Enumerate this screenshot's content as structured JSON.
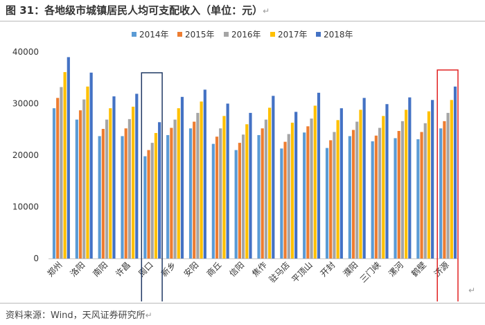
{
  "header": {
    "title": "图 31：各地级市城镇居民人均可支配收入（单位：元）",
    "return_mark": "↵"
  },
  "source": {
    "text": "资料来源：Wind，天风证券研究所",
    "return_mark": "↵"
  },
  "corner_mark": "↵",
  "colors": {
    "2014年": "#5b9bd5",
    "2015年": "#ed7d31",
    "2016年": "#a5a5a5",
    "2017年": "#ffc000",
    "2018年": "#4472c4",
    "highlight_zhoukou": "#1f3864",
    "highlight_jiyuan": "#e02020"
  },
  "chart_data": {
    "type": "bar",
    "categories": [
      "郑州",
      "洛阳",
      "南阳",
      "许昌",
      "周口",
      "新乡",
      "安阳",
      "商丘",
      "信阳",
      "焦作",
      "驻马店",
      "平顶山",
      "开封",
      "濮阳",
      "三门峡",
      "漯河",
      "鹤壁",
      "济源"
    ],
    "series": [
      {
        "name": "2014年",
        "values": [
          29100,
          26900,
          23700,
          23700,
          19800,
          23900,
          25200,
          22200,
          21000,
          23900,
          21300,
          24400,
          21400,
          23700,
          22700,
          23300,
          23100,
          25200
        ]
      },
      {
        "name": "2015年",
        "values": [
          31100,
          28700,
          25100,
          25200,
          21000,
          25300,
          26500,
          23600,
          22400,
          25200,
          22600,
          25600,
          22900,
          24900,
          23800,
          24700,
          24500,
          26600
        ]
      },
      {
        "name": "2016年",
        "values": [
          33200,
          30800,
          26900,
          27000,
          22400,
          26900,
          28200,
          25200,
          24000,
          26900,
          24100,
          27100,
          24500,
          26500,
          25300,
          26600,
          26200,
          28200
        ]
      },
      {
        "name": "2017年",
        "values": [
          36100,
          33300,
          29100,
          29400,
          24300,
          29100,
          30400,
          27600,
          26000,
          29200,
          26300,
          29600,
          26800,
          28800,
          27600,
          28800,
          28500,
          30700
        ]
      },
      {
        "name": "2018年",
        "values": [
          39000,
          36000,
          31400,
          31900,
          26400,
          31300,
          32700,
          30000,
          28200,
          31500,
          28400,
          32100,
          29100,
          31100,
          29900,
          31200,
          30700,
          33300
        ]
      }
    ],
    "ylim": [
      0,
      40000
    ],
    "yticks": [
      0,
      10000,
      20000,
      30000,
      40000
    ],
    "grid": false,
    "legend_position": "top",
    "highlighted_categories": [
      "周口",
      "济源"
    ]
  }
}
